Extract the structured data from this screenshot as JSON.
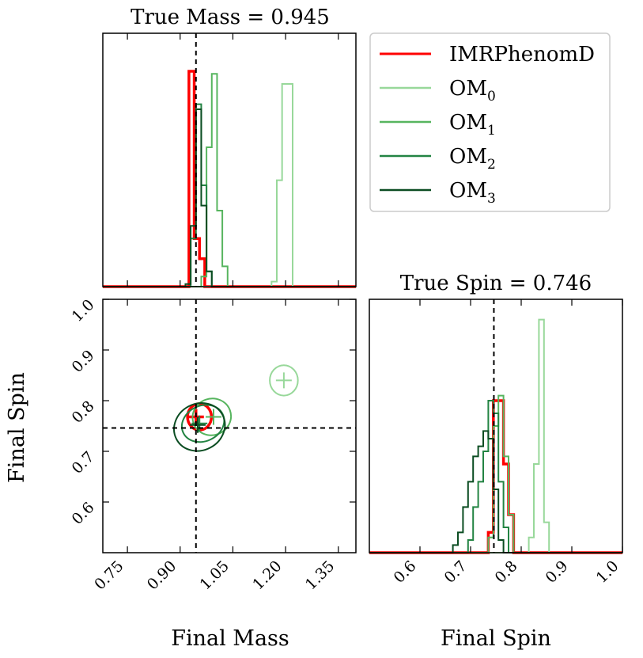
{
  "chart_data": {
    "type": "corner",
    "series": [
      {
        "name": "IMRPhenomD",
        "label": {
          "base": "IMRPhenomD",
          "sub": ""
        },
        "color": "#ff0000",
        "width": 3.5,
        "mass_hist": [
          [
            0.925,
            0.85
          ],
          [
            0.94,
            0.19
          ],
          [
            0.955,
            0.11
          ],
          [
            0.97,
            0.0
          ]
        ],
        "spin_hist": [
          [
            0.735,
            0.08
          ],
          [
            0.745,
            0.6
          ],
          [
            0.755,
            0.6
          ],
          [
            0.765,
            0.35
          ],
          [
            0.775,
            0.15
          ],
          [
            0.785,
            0.0
          ]
        ],
        "contours": [
          {
            "cx": 0.955,
            "cy": 0.768,
            "rx": 0.034,
            "ry": 0.026,
            "rot": 0
          }
        ],
        "center": {
          "mass": 0.945,
          "spin": 0.768
        }
      },
      {
        "name": "OM_0",
        "label": {
          "base": "OM",
          "sub": "0"
        },
        "color": "#98d89a",
        "width": 2,
        "mass_hist": [
          [
            1.16,
            0.02
          ],
          [
            1.175,
            0.42
          ],
          [
            1.19,
            0.8
          ],
          [
            1.205,
            0.8
          ],
          [
            1.22,
            0.0
          ]
        ],
        "spin_hist": [
          [
            0.815,
            0.06
          ],
          [
            0.825,
            0.35
          ],
          [
            0.835,
            0.92
          ],
          [
            0.845,
            0.12
          ],
          [
            0.855,
            0.0
          ]
        ],
        "contours": [
          {
            "cx": 1.195,
            "cy": 0.84,
            "rx": 0.04,
            "ry": 0.03,
            "rot": 0
          }
        ],
        "center": {
          "mass": 1.195,
          "spin": 0.84
        }
      },
      {
        "name": "OM_1",
        "label": {
          "base": "OM",
          "sub": "1"
        },
        "color": "#57b55f",
        "width": 2,
        "mass_hist": [
          [
            0.96,
            0.04
          ],
          [
            0.975,
            0.55
          ],
          [
            0.99,
            0.84
          ],
          [
            1.005,
            0.3
          ],
          [
            1.02,
            0.08
          ],
          [
            1.035,
            0.0
          ]
        ],
        "spin_hist": [
          [
            0.735,
            0.06
          ],
          [
            0.745,
            0.5
          ],
          [
            0.755,
            0.62
          ],
          [
            0.765,
            0.38
          ],
          [
            0.775,
            0.15
          ],
          [
            0.785,
            0.0
          ]
        ],
        "contours": [
          {
            "cx": 0.99,
            "cy": 0.768,
            "rx": 0.055,
            "ry": 0.036,
            "rot": -20
          }
        ],
        "center": {
          "mass": 0.995,
          "spin": 0.768
        }
      },
      {
        "name": "OM_2",
        "label": {
          "base": "OM",
          "sub": "2"
        },
        "color": "#238443",
        "width": 2,
        "mass_hist": [
          [
            0.93,
            0.19
          ],
          [
            0.945,
            0.72
          ],
          [
            0.96,
            0.4
          ],
          [
            0.975,
            0.06
          ],
          [
            0.99,
            0.0
          ]
        ],
        "spin_hist": [
          [
            0.695,
            0.05
          ],
          [
            0.705,
            0.18
          ],
          [
            0.715,
            0.28
          ],
          [
            0.725,
            0.4
          ],
          [
            0.735,
            0.6
          ],
          [
            0.745,
            0.55
          ],
          [
            0.755,
            0.28
          ],
          [
            0.765,
            0.1
          ],
          [
            0.775,
            0.0
          ]
        ],
        "contours": [
          {
            "cx": 0.965,
            "cy": 0.755,
            "rx": 0.062,
            "ry": 0.035,
            "rot": -25
          }
        ],
        "center": {
          "mass": 0.955,
          "spin": 0.755
        }
      },
      {
        "name": "OM_3",
        "label": {
          "base": "OM",
          "sub": "3"
        },
        "color": "#0b4d22",
        "width": 2,
        "mass_hist": [
          [
            0.915,
            0.01
          ],
          [
            0.93,
            0.24
          ],
          [
            0.945,
            0.7
          ],
          [
            0.96,
            0.32
          ],
          [
            0.975,
            0.06
          ],
          [
            0.99,
            0.0
          ]
        ],
        "spin_hist": [
          [
            0.665,
            0.03
          ],
          [
            0.675,
            0.08
          ],
          [
            0.685,
            0.18
          ],
          [
            0.695,
            0.28
          ],
          [
            0.705,
            0.38
          ],
          [
            0.715,
            0.42
          ],
          [
            0.725,
            0.48
          ],
          [
            0.735,
            0.45
          ],
          [
            0.745,
            0.25
          ],
          [
            0.755,
            0.05
          ],
          [
            0.765,
            0.0
          ]
        ],
        "contours": [
          {
            "cx": 0.955,
            "cy": 0.748,
            "rx": 0.074,
            "ry": 0.046,
            "rot": -28
          }
        ],
        "center": {
          "mass": 0.95,
          "spin": 0.752
        }
      }
    ],
    "truth": {
      "mass": 0.945,
      "spin": 0.746
    },
    "mass_range": [
      0.68,
      1.4
    ],
    "spin_range": [
      0.5,
      1.0
    ],
    "mass_ticks": [
      "0.75",
      "0.90",
      "1.05",
      "1.20",
      "1.35"
    ],
    "spin_ticks_y": [
      "0.6",
      "0.7",
      "0.8",
      "0.9",
      "1.0"
    ],
    "spin_ticks_x": [
      "0.6",
      "0.7",
      "0.8",
      "0.9",
      "1.0"
    ],
    "title_mass": "True Mass = 0.945",
    "title_spin": "True Spin = 0.746",
    "xlabel_mass": "Final Mass",
    "xlabel_spin": "Final Spin",
    "ylabel_spin": "Final Spin",
    "legend_placement": "top-right"
  }
}
